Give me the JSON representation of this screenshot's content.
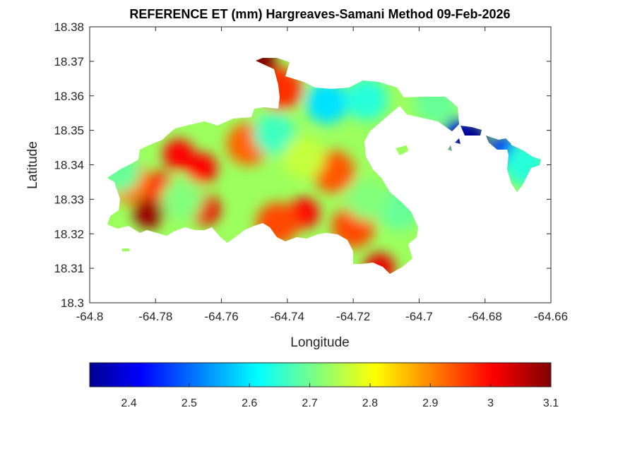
{
  "chart_data": {
    "type": "heatmap",
    "title": "REFERENCE ET (mm) Hargreaves-Samani Method  09-Feb-2026",
    "xlabel": "Longitude",
    "ylabel": "Latitude",
    "xlim": [
      -64.8,
      -64.66
    ],
    "ylim": [
      18.3,
      18.38
    ],
    "x_ticks": [
      "-64.8",
      "-64.78",
      "-64.76",
      "-64.74",
      "-64.72",
      "-64.7",
      "-64.68",
      "-64.66"
    ],
    "y_ticks": [
      "18.3",
      "18.31",
      "18.32",
      "18.33",
      "18.34",
      "18.35",
      "18.36",
      "18.37",
      "18.38"
    ],
    "colormap": "jet",
    "colorbar": {
      "range": [
        2.335,
        3.1
      ],
      "ticks": [
        "2.4",
        "2.5",
        "2.6",
        "2.7",
        "2.8",
        "2.9",
        "3",
        "3.1"
      ],
      "location": "bottom"
    },
    "hotspots": [
      {
        "lon": -64.782,
        "lat": 18.326,
        "value": 3.08
      },
      {
        "lon": -64.7785,
        "lat": 18.3335,
        "value": 3.0
      },
      {
        "lon": -64.788,
        "lat": 18.335,
        "value": 2.92
      },
      {
        "lon": -64.773,
        "lat": 18.343,
        "value": 3.0
      },
      {
        "lon": -64.766,
        "lat": 18.339,
        "value": 3.0
      },
      {
        "lon": -64.765,
        "lat": 18.327,
        "value": 3.02
      },
      {
        "lon": -64.748,
        "lat": 18.37,
        "value": 3.1
      },
      {
        "lon": -64.742,
        "lat": 18.362,
        "value": 2.97
      },
      {
        "lon": -64.735,
        "lat": 18.326,
        "value": 3.0
      },
      {
        "lon": -64.743,
        "lat": 18.323,
        "value": 2.95
      },
      {
        "lon": -64.72,
        "lat": 18.322,
        "value": 2.95
      },
      {
        "lon": -64.712,
        "lat": 18.31,
        "value": 3.02
      },
      {
        "lon": -64.752,
        "lat": 18.346,
        "value": 2.93
      },
      {
        "lon": -64.726,
        "lat": 18.338,
        "value": 2.94
      },
      {
        "lon": -64.728,
        "lat": 18.358,
        "value": 2.6
      },
      {
        "lon": -64.716,
        "lat": 18.359,
        "value": 2.65
      },
      {
        "lon": -64.744,
        "lat": 18.349,
        "value": 2.67
      },
      {
        "lon": -64.772,
        "lat": 18.33,
        "value": 2.72
      },
      {
        "lon": -64.791,
        "lat": 18.338,
        "value": 2.7
      },
      {
        "lon": -64.706,
        "lat": 18.327,
        "value": 2.7
      },
      {
        "lon": -64.716,
        "lat": 18.33,
        "value": 2.72
      },
      {
        "lon": -64.735,
        "lat": 18.342,
        "value": 2.77
      },
      {
        "lon": -64.688,
        "lat": 18.349,
        "value": 2.4
      },
      {
        "lon": -64.684,
        "lat": 18.348,
        "value": 2.35
      },
      {
        "lon": -64.674,
        "lat": 18.344,
        "value": 2.45
      },
      {
        "lon": -64.668,
        "lat": 18.34,
        "value": 2.65
      },
      {
        "lon": -64.695,
        "lat": 18.358,
        "value": 2.7
      }
    ]
  }
}
